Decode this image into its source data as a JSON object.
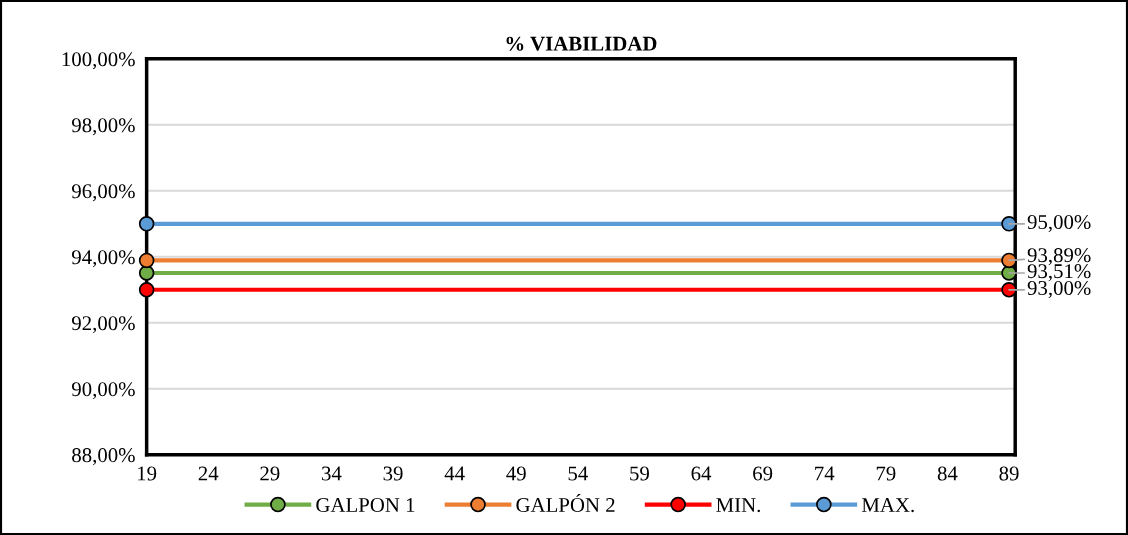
{
  "chart_data": {
    "type": "line",
    "title": "% VIABILIDAD",
    "x": [
      19,
      89
    ],
    "xlim": [
      19,
      89.5
    ],
    "xticks": [
      19,
      24,
      29,
      34,
      39,
      44,
      49,
      54,
      59,
      64,
      69,
      74,
      79,
      84,
      89
    ],
    "ylim": [
      88,
      100
    ],
    "yticks": [
      {
        "value": 88,
        "label": "88,00%"
      },
      {
        "value": 90,
        "label": "90,00%"
      },
      {
        "value": 92,
        "label": "92,00%"
      },
      {
        "value": 94,
        "label": "94,00%"
      },
      {
        "value": 96,
        "label": "96,00%"
      },
      {
        "value": 98,
        "label": "98,00%"
      },
      {
        "value": 100,
        "label": "100,00%"
      }
    ],
    "series": [
      {
        "name": "GALPON 1",
        "color": "#70ad47",
        "values": [
          93.51,
          93.51
        ],
        "value_labels": [
          null,
          "93,51%"
        ]
      },
      {
        "name": "GALPÓN 2",
        "color": "#ed7d31",
        "values": [
          93.89,
          93.89
        ],
        "value_labels": [
          null,
          "93,89%"
        ]
      },
      {
        "name": "MIN.",
        "color": "#ff0000",
        "values": [
          93.0,
          93.0
        ],
        "value_labels": [
          null,
          "93,00%"
        ]
      },
      {
        "name": "MAX.",
        "color": "#5b9bd5",
        "values": [
          95.0,
          95.0
        ],
        "value_labels": [
          null,
          "95,00%"
        ]
      }
    ],
    "marker": "circle",
    "line_style": "solid",
    "grid": "y",
    "legend": "bottom"
  }
}
